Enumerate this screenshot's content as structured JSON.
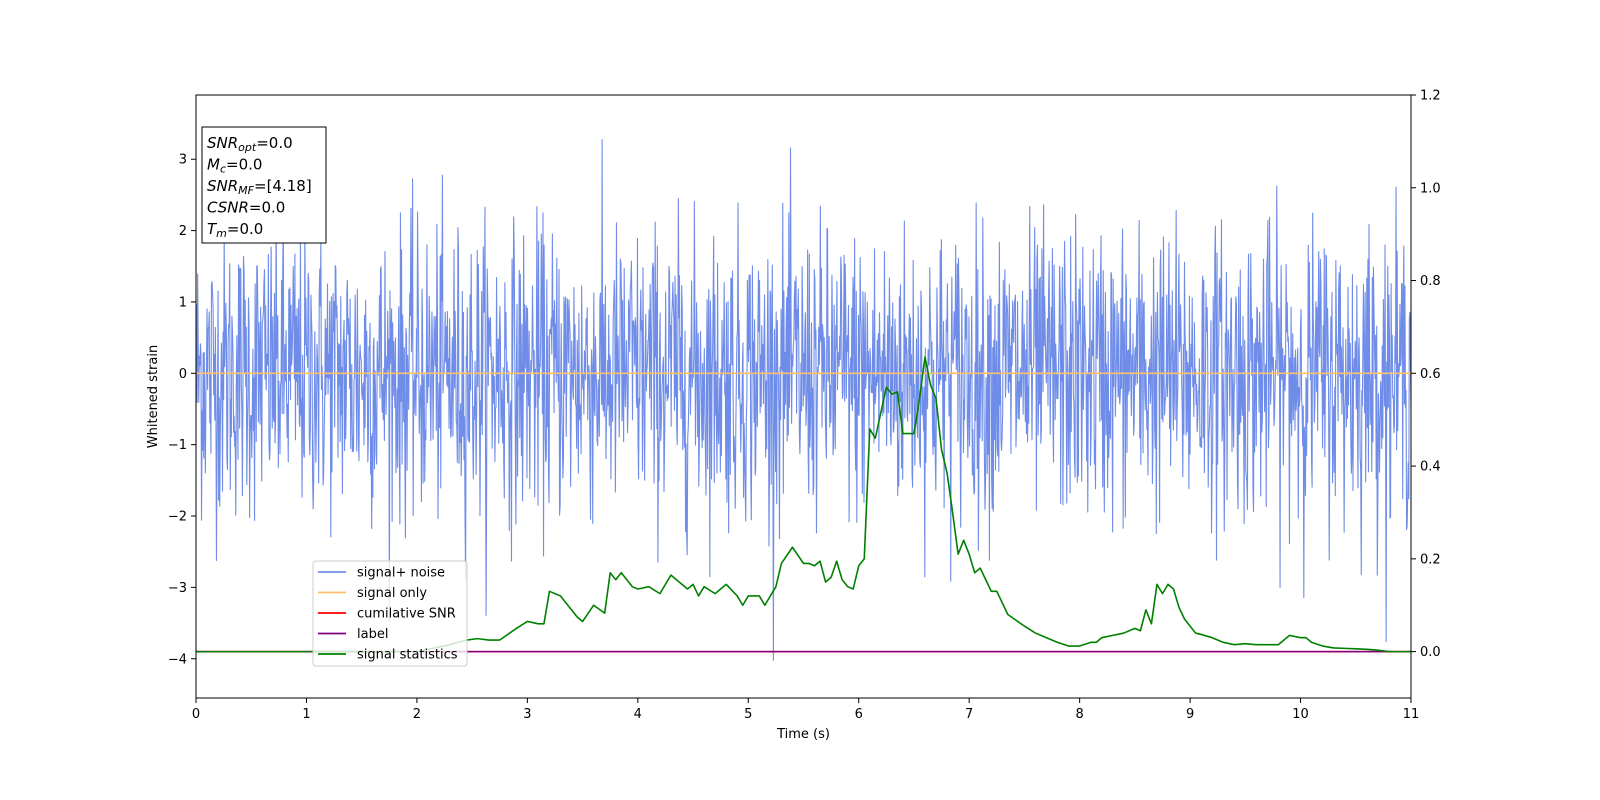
{
  "chart_data": {
    "type": "line",
    "xlabel": "Time (s)",
    "ylabel": "Whitened strain",
    "xlim": [
      0,
      11
    ],
    "ylim_left": [
      -4.55,
      3.9
    ],
    "ylim_right": [
      -0.1,
      1.2
    ],
    "x_ticks": [
      "0",
      "1",
      "2",
      "3",
      "4",
      "5",
      "6",
      "7",
      "8",
      "9",
      "10",
      "11"
    ],
    "y_ticks_left": [
      "3",
      "2",
      "1",
      "0",
      "−1",
      "−2",
      "−3",
      "−4"
    ],
    "y_ticks_right": [
      "1.2",
      "1.0",
      "0.8",
      "0.6",
      "0.4",
      "0.2",
      "0.0"
    ],
    "legend_position": "lower-left",
    "info_box": [
      {
        "main": "SNR",
        "sub": "opt",
        "value": "=0.0"
      },
      {
        "main": "M",
        "sub": "c",
        "value": "=0.0"
      },
      {
        "main": "SNR",
        "sub": "MF",
        "value": "=[4.18]"
      },
      {
        "main": "CSNR",
        "sub": "",
        "value": "=0.0"
      },
      {
        "main": "T",
        "sub": "m",
        "value": "=0.0"
      }
    ],
    "series": [
      {
        "name": "signal+ noise",
        "color": "#6f8de8",
        "axis": "left",
        "kind": "noise",
        "mean": 0.0,
        "std": 1.0,
        "min": -4.15,
        "max": 3.55,
        "n_samples": 2200
      },
      {
        "name": "signal only",
        "color": "#fdbf6f",
        "axis": "left",
        "x": [
          0,
          11
        ],
        "values": [
          0.0,
          0.0
        ]
      },
      {
        "name": "cumilative SNR",
        "color": "#ff0000",
        "axis": "right",
        "x": [
          0,
          11
        ],
        "values": [
          0.0,
          0.0
        ]
      },
      {
        "name": "label",
        "color": "#800080",
        "axis": "right",
        "x": [
          0,
          11
        ],
        "values": [
          0.0,
          0.0
        ]
      },
      {
        "name": "signal statistics",
        "color": "#008000",
        "axis": "right",
        "x": [
          0,
          0.5,
          1.0,
          1.5,
          2.0,
          2.3,
          2.45,
          2.55,
          2.65,
          2.75,
          2.9,
          3.0,
          3.1,
          3.15,
          3.2,
          3.3,
          3.45,
          3.5,
          3.6,
          3.7,
          3.75,
          3.8,
          3.85,
          3.95,
          4.0,
          4.1,
          4.2,
          4.3,
          4.45,
          4.5,
          4.55,
          4.6,
          4.7,
          4.8,
          4.9,
          4.95,
          5.0,
          5.1,
          5.15,
          5.25,
          5.3,
          5.4,
          5.5,
          5.55,
          5.6,
          5.65,
          5.7,
          5.75,
          5.8,
          5.85,
          5.9,
          5.95,
          6.0,
          6.05,
          6.1,
          6.15,
          6.25,
          6.3,
          6.35,
          6.4,
          6.5,
          6.55,
          6.6,
          6.65,
          6.7,
          6.75,
          6.8,
          6.85,
          6.9,
          6.95,
          7.0,
          7.05,
          7.1,
          7.2,
          7.25,
          7.3,
          7.35,
          7.5,
          7.6,
          7.7,
          7.8,
          7.9,
          8.0,
          8.1,
          8.15,
          8.2,
          8.3,
          8.4,
          8.5,
          8.55,
          8.6,
          8.65,
          8.7,
          8.75,
          8.8,
          8.85,
          8.9,
          8.95,
          9.0,
          9.05,
          9.1,
          9.2,
          9.3,
          9.4,
          9.5,
          9.6,
          9.7,
          9.8,
          9.9,
          10.0,
          10.05,
          10.1,
          10.2,
          10.3,
          10.4,
          10.5,
          10.6,
          10.7,
          10.8,
          10.9,
          11.0
        ],
        "values": [
          0.0,
          0.0,
          0.0,
          0.0,
          0.0,
          0.015,
          0.025,
          0.028,
          0.025,
          0.025,
          0.05,
          0.065,
          0.06,
          0.06,
          0.13,
          0.12,
          0.075,
          0.065,
          0.1,
          0.083,
          0.17,
          0.155,
          0.17,
          0.14,
          0.135,
          0.14,
          0.125,
          0.165,
          0.135,
          0.145,
          0.12,
          0.14,
          0.125,
          0.145,
          0.12,
          0.1,
          0.12,
          0.12,
          0.1,
          0.14,
          0.19,
          0.225,
          0.19,
          0.19,
          0.185,
          0.195,
          0.15,
          0.16,
          0.195,
          0.155,
          0.14,
          0.135,
          0.185,
          0.2,
          0.48,
          0.46,
          0.57,
          0.555,
          0.56,
          0.47,
          0.47,
          0.545,
          0.635,
          0.575,
          0.545,
          0.435,
          0.385,
          0.3,
          0.21,
          0.24,
          0.21,
          0.17,
          0.18,
          0.13,
          0.13,
          0.105,
          0.08,
          0.055,
          0.04,
          0.03,
          0.02,
          0.012,
          0.012,
          0.02,
          0.02,
          0.03,
          0.035,
          0.04,
          0.05,
          0.045,
          0.09,
          0.06,
          0.145,
          0.125,
          0.145,
          0.135,
          0.095,
          0.07,
          0.055,
          0.04,
          0.037,
          0.03,
          0.02,
          0.015,
          0.017,
          0.015,
          0.015,
          0.015,
          0.035,
          0.03,
          0.03,
          0.02,
          0.012,
          0.008,
          0.007,
          0.006,
          0.005,
          0.003,
          0.0,
          0.0,
          0.0
        ]
      }
    ]
  }
}
